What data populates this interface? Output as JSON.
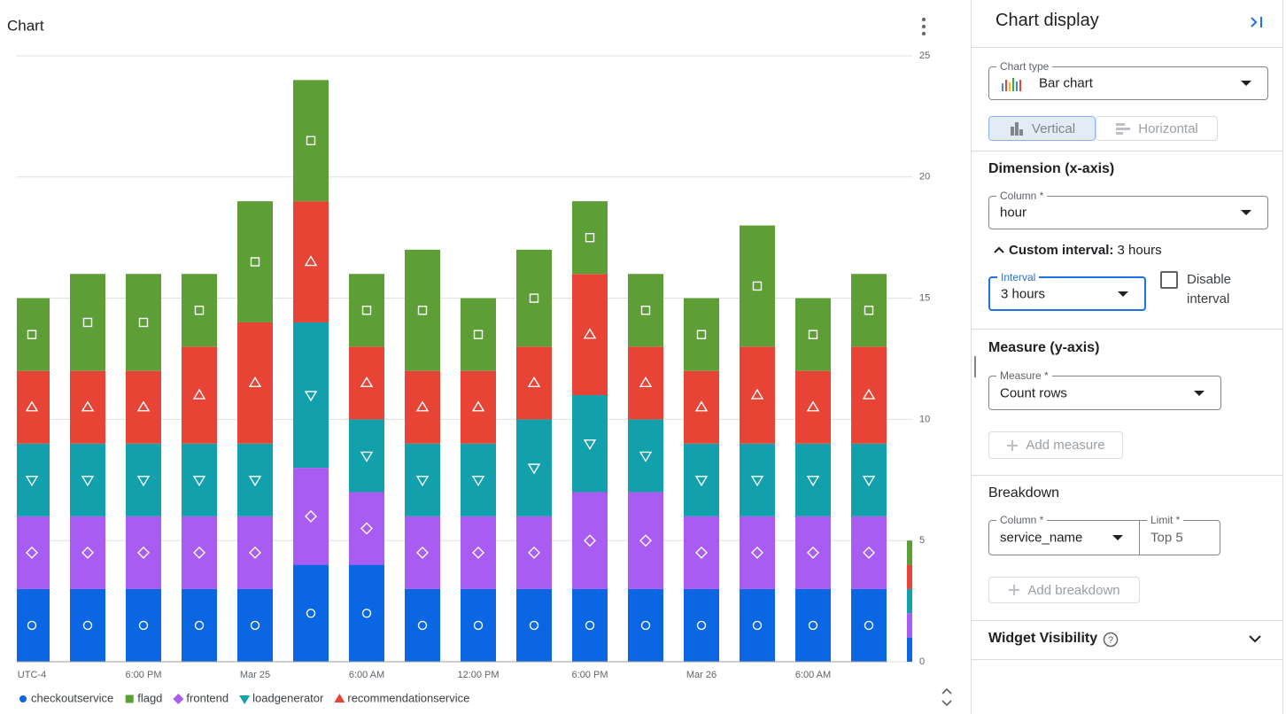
{
  "chart_data": {
    "type": "bar",
    "stacked": true,
    "title": "Chart",
    "categories": [
      "UTC-4",
      null,
      "6:00 PM",
      null,
      "Mar 25",
      null,
      "6:00 AM",
      null,
      "12:00 PM",
      null,
      "6:00 PM",
      null,
      "Mar 26",
      null,
      "6:00 AM",
      null
    ],
    "series": [
      {
        "name": "checkoutservice",
        "color": "#0b66e4",
        "marker": "circle",
        "values": [
          3,
          3,
          3,
          3,
          3,
          4,
          4,
          3,
          3,
          3,
          3,
          3,
          3,
          3,
          3,
          3
        ]
      },
      {
        "name": "flagd",
        "color": "#5e9e37",
        "marker": "square",
        "values": [
          3,
          4,
          4,
          3,
          5,
          5,
          3,
          5,
          3,
          4,
          3,
          3,
          3,
          5,
          3,
          3
        ]
      },
      {
        "name": "frontend",
        "color": "#a95cf1",
        "marker": "diamond",
        "values": [
          3,
          3,
          3,
          3,
          3,
          4,
          3,
          3,
          3,
          3,
          4,
          4,
          3,
          3,
          3,
          3
        ]
      },
      {
        "name": "loadgenerator",
        "color": "#12a0ac",
        "marker": "triangle-down",
        "values": [
          3,
          3,
          3,
          3,
          3,
          6,
          3,
          3,
          3,
          4,
          4,
          3,
          3,
          3,
          3,
          3
        ]
      },
      {
        "name": "recommendationservice",
        "color": "#e84436",
        "marker": "triangle-up",
        "values": [
          3,
          3,
          3,
          4,
          5,
          5,
          3,
          3,
          3,
          3,
          5,
          3,
          3,
          4,
          3,
          4
        ]
      }
    ],
    "ylim": [
      0,
      25
    ],
    "yticks": [
      0,
      5,
      10,
      15,
      20,
      25
    ],
    "grid": true
  },
  "ui": {
    "title": "Chart display",
    "chart_type_label": "Chart type",
    "chart_type": "Bar chart",
    "vertical": "Vertical",
    "horizontal": "Horizontal",
    "dimension_title": "Dimension (x-axis)",
    "column_label": "Column *",
    "column_value": "hour",
    "custom_interval_label": "Custom interval:",
    "custom_interval_value": "3 hours",
    "interval_label": "Interval",
    "interval_value": "3 hours",
    "disable_interval": "Disable interval",
    "measure_title": "Measure (y-axis)",
    "measure_label": "Measure *",
    "measure_value": "Count rows",
    "add_measure": "Add measure",
    "breakdown_title": "Breakdown",
    "breakdown_column_label": "Column *",
    "breakdown_column_value": "service_name",
    "limit_label": "Limit *",
    "limit_value": "Top 5",
    "add_breakdown": "Add breakdown",
    "widget_visibility": "Widget Visibility"
  }
}
